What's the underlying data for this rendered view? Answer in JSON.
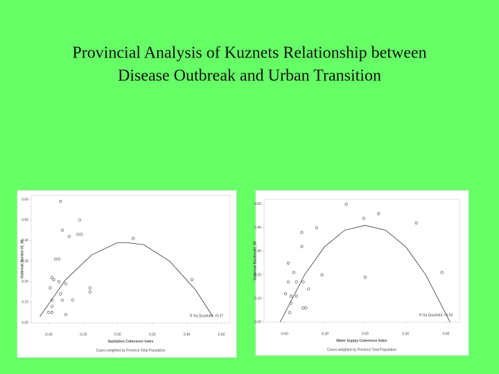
{
  "title": [
    "Provincial Analysis of Kuznets Relationship between",
    "Disease Outbreak and Urban Transition"
  ],
  "chart_data": [
    {
      "type": "scatter",
      "x_label": "Sanitation Coherence Index",
      "y_label": "Outbreak Burden 01_05",
      "annotation": "R Sq Quadratic =0.37",
      "footnote": "Cases weighted by Province Total Population",
      "color": "#555555",
      "x": [
        -0.33,
        -0.32,
        -0.28,
        -0.22,
        -0.23,
        -0.21,
        -0.36,
        -0.34,
        0.09,
        0.43,
        -0.38,
        -0.37,
        -0.39,
        -0.34,
        -0.3,
        -0.16,
        -0.16,
        -0.33,
        -0.32,
        -0.38,
        -0.26,
        -0.4,
        -0.38,
        -0.38,
        -0.3
      ],
      "y": [
        0.59,
        0.45,
        0.42,
        0.5,
        0.43,
        0.43,
        0.31,
        0.31,
        0.41,
        0.21,
        0.22,
        0.21,
        0.17,
        0.2,
        0.19,
        0.17,
        0.15,
        0.14,
        0.11,
        0.11,
        0.11,
        0.05,
        0.05,
        0.08,
        0.04
      ],
      "fit": {
        "x": [
          -0.45,
          -0.3,
          -0.15,
          0,
          0.05,
          0.15,
          0.3,
          0.45,
          0.55
        ],
        "y": [
          0.03,
          0.21,
          0.33,
          0.39,
          0.39,
          0.38,
          0.3,
          0.16,
          0.03
        ]
      },
      "xlim": [
        -0.5,
        0.65
      ],
      "ylim": [
        0,
        0.62
      ],
      "xticks": [
        {
          "value": -0.4,
          "label": "-0.40"
        },
        {
          "value": -0.2,
          "label": "-0.20"
        },
        {
          "value": 0,
          "label": "0.00"
        },
        {
          "value": 0.2,
          "label": "0.20"
        },
        {
          "value": 0.4,
          "label": "0.40"
        },
        {
          "value": 0.6,
          "label": "0.60"
        }
      ],
      "yticks": [
        {
          "value": 0,
          "label": "0.00"
        },
        {
          "value": 0.1,
          "label": "0.10"
        },
        {
          "value": 0.2,
          "label": "0.20"
        },
        {
          "value": 0.3,
          "label": "0.30"
        },
        {
          "value": 0.4,
          "label": "0.40"
        },
        {
          "value": 0.5,
          "label": "0.50"
        },
        {
          "value": 0.6,
          "label": "0.60"
        }
      ]
    },
    {
      "type": "scatter",
      "x_label": "Water Supply Coherence Index",
      "y_label": "Outbreak Burden 01_05",
      "annotation": "R Sq Quadratic =0.56",
      "footnote": "Cases weighted by Province Total Population",
      "color": "#555555",
      "x": [
        -0.14,
        -0.01,
        0.1,
        0.38,
        -0.47,
        -0.36,
        -0.47,
        -0.57,
        -0.53,
        -0.46,
        -0.32,
        0.0,
        0.57,
        -0.57,
        -0.51,
        -0.42,
        -0.59,
        -0.55,
        -0.51,
        -0.55,
        -0.46,
        -0.56,
        -0.44
      ],
      "y": [
        0.5,
        0.44,
        0.46,
        0.42,
        0.38,
        0.4,
        0.32,
        0.25,
        0.21,
        0.17,
        0.2,
        0.19,
        0.21,
        0.17,
        0.17,
        0.14,
        0.12,
        0.11,
        0.11,
        0.08,
        0.06,
        0.04,
        0.06
      ],
      "fit": {
        "x": [
          -0.63,
          -0.45,
          -0.3,
          -0.15,
          0,
          0.15,
          0.3,
          0.45,
          0.63
        ],
        "y": [
          0,
          0.2,
          0.32,
          0.39,
          0.41,
          0.39,
          0.32,
          0.2,
          0
        ]
      },
      "xlim": [
        -0.75,
        0.7
      ],
      "ylim": [
        0,
        0.52
      ],
      "xticks": [
        {
          "value": -0.6,
          "label": "-0.60"
        },
        {
          "value": -0.3,
          "label": "-0.30"
        },
        {
          "value": 0,
          "label": "0.00"
        },
        {
          "value": 0.3,
          "label": "0.30"
        },
        {
          "value": 0.6,
          "label": "0.60"
        }
      ],
      "yticks": [
        {
          "value": 0,
          "label": "0.00"
        },
        {
          "value": 0.1,
          "label": "0.10"
        },
        {
          "value": 0.2,
          "label": "0.20"
        },
        {
          "value": 0.3,
          "label": "0.30"
        },
        {
          "value": 0.4,
          "label": "0.40"
        },
        {
          "value": 0.5,
          "label": "0.50"
        }
      ]
    }
  ]
}
